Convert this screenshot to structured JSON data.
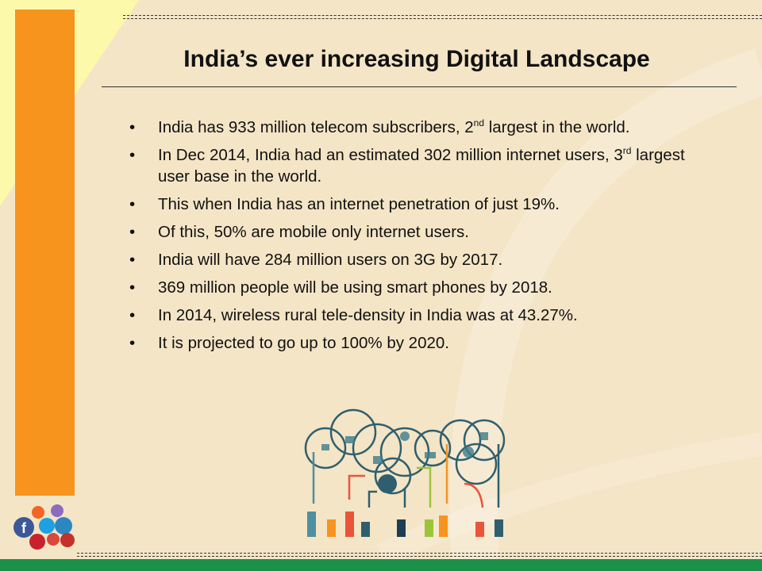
{
  "slide": {
    "title": "India’s ever increasing Digital Landscape",
    "bullets": [
      {
        "pre": "India has 933 million telecom subscribers, 2",
        "sup": "nd",
        "post": " largest in the world."
      },
      {
        "pre": "In Dec 2014, India had an estimated 302 million internet users, 3",
        "sup": "rd",
        "post": " largest user base in the world."
      },
      {
        "pre": "This when India has an internet penetration of just 19%.",
        "sup": "",
        "post": ""
      },
      {
        "pre": "Of this, 50% are mobile only internet users.",
        "sup": "",
        "post": ""
      },
      {
        "pre": "India will have 284 million users on 3G by 2017.",
        "sup": "",
        "post": ""
      },
      {
        "pre": "369 million people will be using smart phones by 2018.",
        "sup": "",
        "post": ""
      },
      {
        "pre": "In 2014, wireless rural tele-density in India was at 43.27%.",
        "sup": "",
        "post": ""
      },
      {
        "pre": "It is projected to go up to 100% by 2020.",
        "sup": "",
        "post": ""
      }
    ],
    "bullet_char": "•"
  },
  "colors": {
    "orange": "#f7941d",
    "green": "#1a9048",
    "background": "#f4e5c6"
  },
  "social_icons": [
    "blogger-icon",
    "picasa-icon",
    "facebook-icon",
    "twitter-icon",
    "linkedin-icon",
    "pinterest-icon",
    "google-plus-icon",
    "youtube-icon"
  ]
}
